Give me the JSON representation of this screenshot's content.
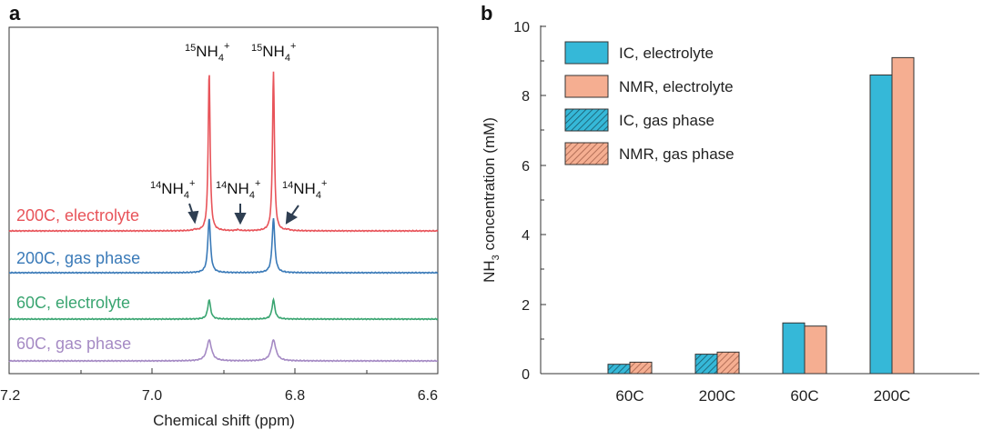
{
  "colors": {
    "red": "#e8545a",
    "blue": "#3a7ab8",
    "green": "#3aa571",
    "purple": "#a58ac4",
    "cyan": "#35b8d8",
    "salmon": "#f5ae91",
    "axis": "#333333",
    "arrow": "#2f3f52"
  },
  "panel_a": {
    "letter": "a",
    "xlabel": "Chemical shift (ppm)",
    "xticks": [
      "7.2",
      "7.0",
      "6.8",
      "6.6"
    ],
    "peak_labels": {
      "n15": {
        "sup": "15",
        "main": "NH",
        "sub": "4",
        "sup2": "+"
      },
      "n14": {
        "sup": "14",
        "main": "NH",
        "sub": "4",
        "sup2": "+"
      }
    }
  },
  "panel_b": {
    "letter": "b",
    "ylabel": {
      "pre": "NH",
      "sub": "3",
      "post": " concentration (mM)"
    },
    "yticks": [
      "0",
      "2",
      "4",
      "6",
      "8",
      "10"
    ],
    "xticks": [
      "60C",
      "200C",
      "60C",
      "200C"
    ],
    "legend": [
      "IC, electrolyte",
      "NMR, electrolyte",
      "IC, gas phase",
      "NMR, gas phase"
    ]
  },
  "chart_data": [
    {
      "type": "line",
      "title": "",
      "xlabel": "Chemical shift (ppm)",
      "xlim": [
        7.2,
        6.6
      ],
      "x_reversed": true,
      "peaks_ppm": [
        6.92,
        6.83
      ],
      "satellite_arrows_ppm": [
        6.94,
        6.88,
        6.81
      ],
      "series": [
        {
          "name": "200C, electrolyte",
          "color": "#e8545a",
          "relative_peak_height": 1.0
        },
        {
          "name": "200C, gas phase",
          "color": "#3a7ab8",
          "relative_peak_height": 0.34
        },
        {
          "name": "60C, electrolyte",
          "color": "#3aa571",
          "relative_peak_height": 0.12
        },
        {
          "name": "60C, gas phase",
          "color": "#a58ac4",
          "relative_peak_height": 0.13
        }
      ]
    },
    {
      "type": "bar",
      "title": "",
      "xlabel": "",
      "ylabel": "NH3 concentration (mM)",
      "ylim": [
        0,
        10
      ],
      "categories": [
        "60C",
        "200C",
        "60C",
        "200C"
      ],
      "series": [
        {
          "name": "IC, gas phase",
          "values": [
            0.27,
            0.56,
            null,
            null
          ]
        },
        {
          "name": "NMR, gas phase",
          "values": [
            0.33,
            0.62,
            null,
            null
          ]
        },
        {
          "name": "IC, electrolyte",
          "values": [
            null,
            null,
            1.46,
            8.6
          ]
        },
        {
          "name": "NMR, electrolyte",
          "values": [
            null,
            null,
            1.37,
            9.1
          ]
        }
      ]
    }
  ]
}
